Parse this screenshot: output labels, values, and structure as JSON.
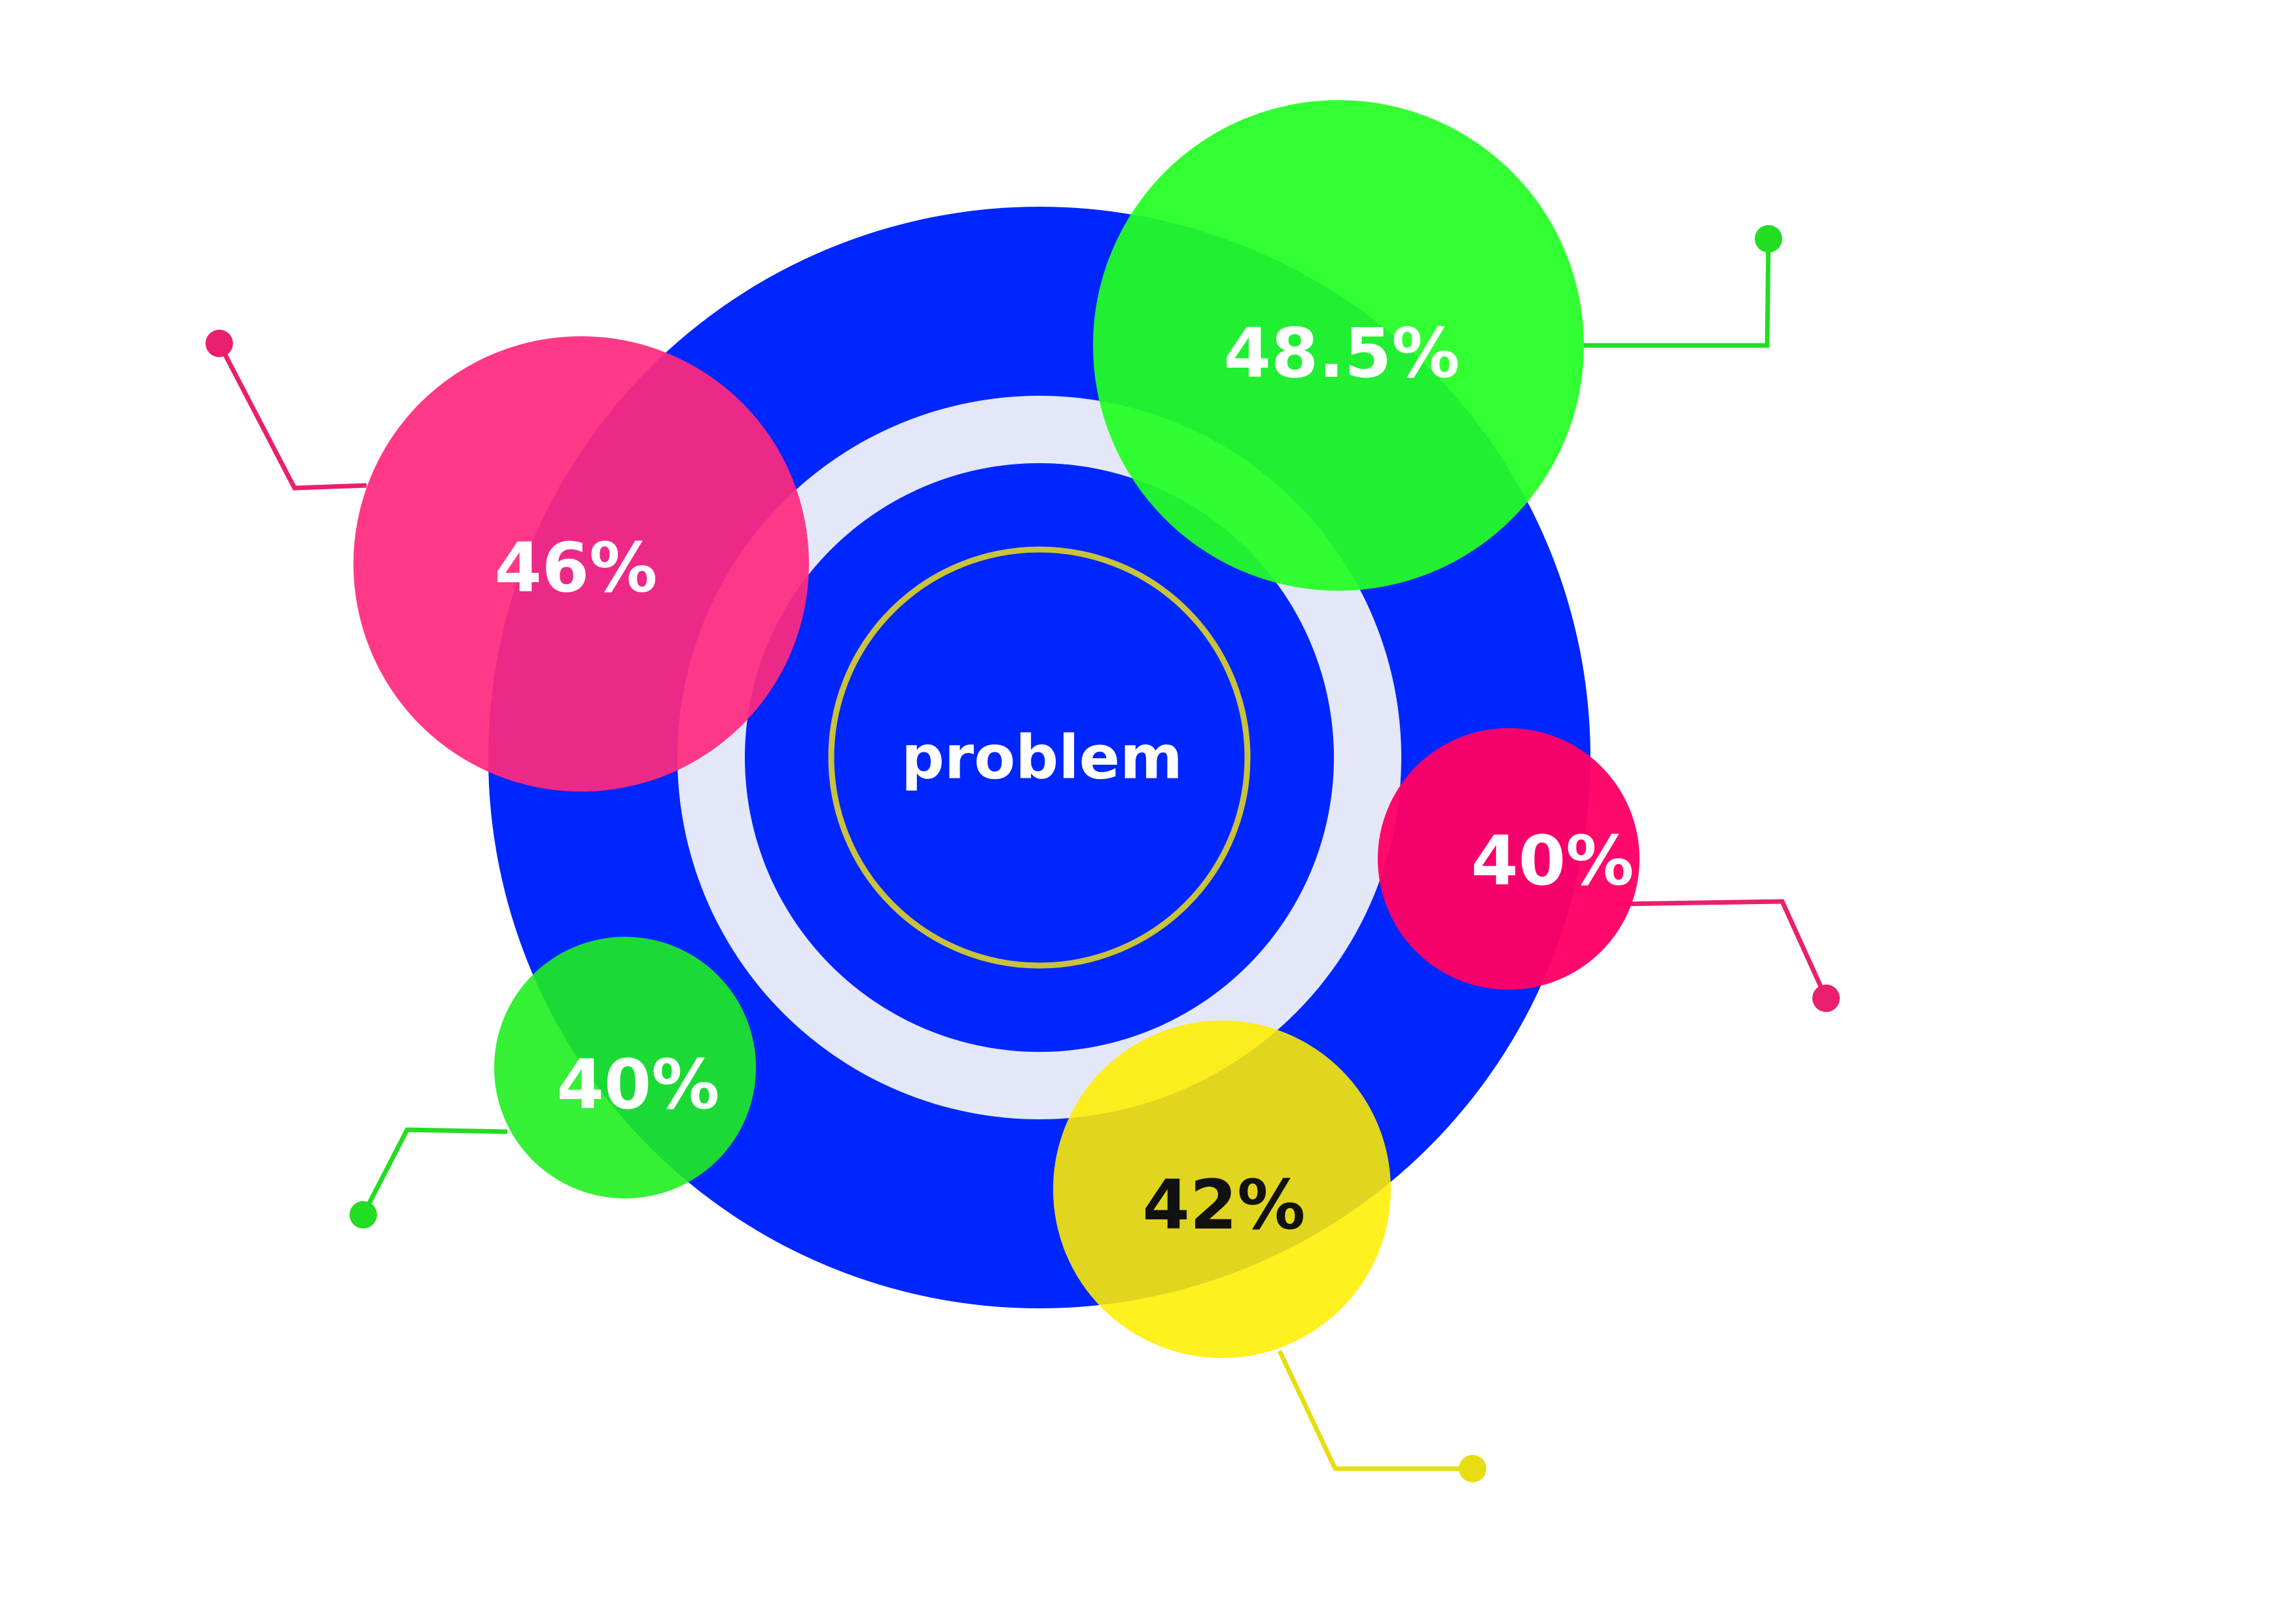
{
  "diagram": {
    "center": {
      "label": "problem"
    },
    "colors": {
      "outer_ring": "#0026ff",
      "light_ring": "#e4e7f8",
      "inner_disc": "#0026ff",
      "inner_outline": "#c9c23a",
      "center_text": "#ffffff"
    },
    "bubbles": [
      {
        "id": "top-right",
        "label": "48.5%",
        "color": "#22ff22",
        "line_color": "#22dd22",
        "text_color": "#ffffff"
      },
      {
        "id": "left",
        "label": "46%",
        "color": "#ff2a7f",
        "line_color": "#e8206e",
        "text_color": "#ffffff"
      },
      {
        "id": "right",
        "label": "40%",
        "color": "#ff0066",
        "line_color": "#e8206e",
        "text_color": "#ffffff"
      },
      {
        "id": "bottom-left",
        "label": "40%",
        "color": "#1fee1f",
        "line_color": "#22dd22",
        "text_color": "#ffffff"
      },
      {
        "id": "bottom",
        "label": "42%",
        "color": "#ffee00",
        "line_color": "#e8dd10",
        "text_color": "#111111"
      }
    ]
  }
}
